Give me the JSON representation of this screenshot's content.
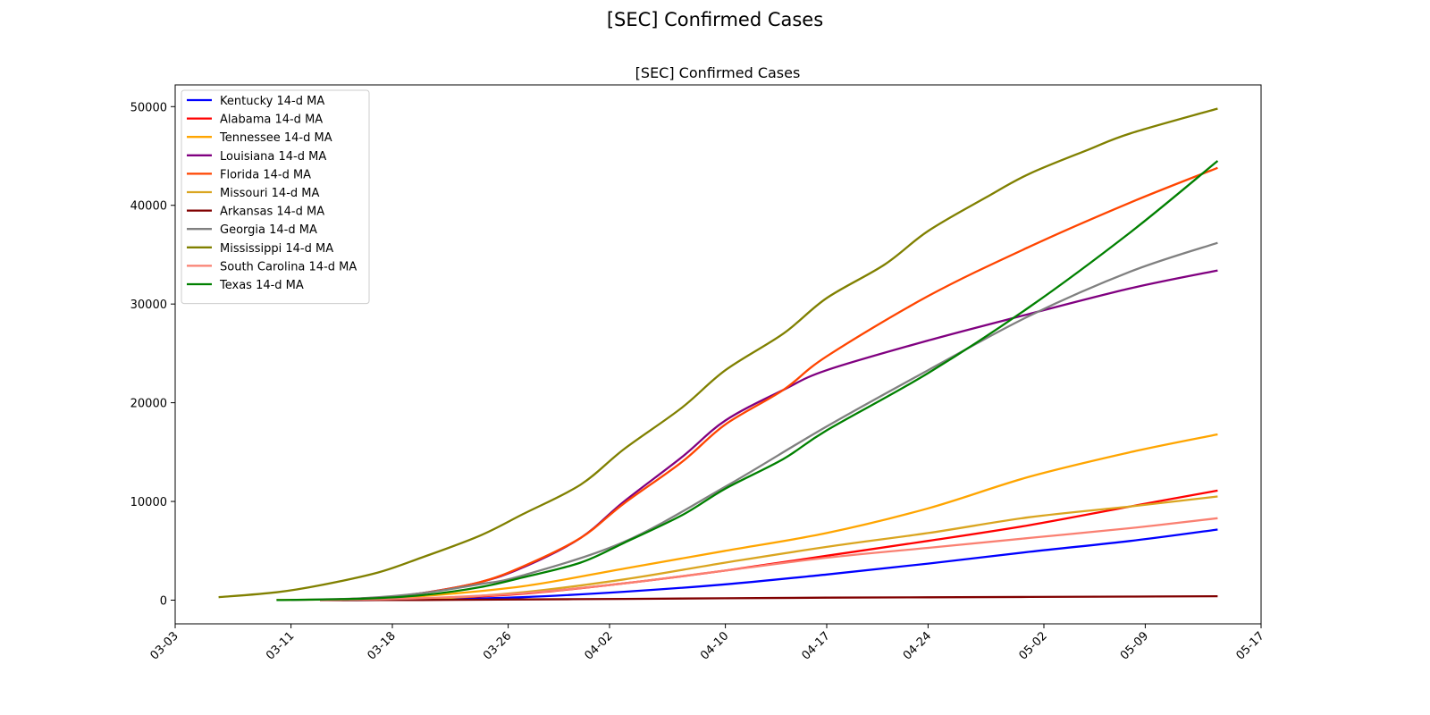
{
  "suptitle": "[SEC] Confirmed Cases",
  "chart_data": {
    "type": "line",
    "title": "[SEC] Confirmed Cases",
    "xlabel": "",
    "ylabel": "",
    "x_is_date": true,
    "xlim": [
      "2020-03-03",
      "2020-05-17"
    ],
    "ylim": [
      -2400,
      52200
    ],
    "x_ticks": [
      {
        "date": "2020-03-03",
        "label": "03-03"
      },
      {
        "date": "2020-03-11",
        "label": "03-11"
      },
      {
        "date": "2020-03-18",
        "label": "03-18"
      },
      {
        "date": "2020-03-26",
        "label": "03-26"
      },
      {
        "date": "2020-04-02",
        "label": "04-02"
      },
      {
        "date": "2020-04-10",
        "label": "04-10"
      },
      {
        "date": "2020-04-17",
        "label": "04-17"
      },
      {
        "date": "2020-04-24",
        "label": "04-24"
      },
      {
        "date": "2020-05-02",
        "label": "05-02"
      },
      {
        "date": "2020-05-09",
        "label": "05-09"
      },
      {
        "date": "2020-05-17",
        "label": "05-17"
      }
    ],
    "y_ticks": [
      0,
      10000,
      20000,
      30000,
      40000,
      50000
    ],
    "grid": false,
    "legend_position": "upper-left",
    "series": [
      {
        "name": "Kentucky 14-d MA",
        "color": "#0000ff",
        "points": [
          [
            "2020-03-13",
            0
          ],
          [
            "2020-03-20",
            60
          ],
          [
            "2020-03-27",
            300
          ],
          [
            "2020-04-03",
            850
          ],
          [
            "2020-04-10",
            1600
          ],
          [
            "2020-04-17",
            2600
          ],
          [
            "2020-04-24",
            3700
          ],
          [
            "2020-05-01",
            4900
          ],
          [
            "2020-05-08",
            6000
          ],
          [
            "2020-05-14",
            7150
          ]
        ]
      },
      {
        "name": "Alabama 14-d MA",
        "color": "#ff0000",
        "points": [
          [
            "2020-03-13",
            10
          ],
          [
            "2020-03-20",
            150
          ],
          [
            "2020-03-27",
            650
          ],
          [
            "2020-04-03",
            1700
          ],
          [
            "2020-04-10",
            3000
          ],
          [
            "2020-04-17",
            4500
          ],
          [
            "2020-04-24",
            6000
          ],
          [
            "2020-05-01",
            7600
          ],
          [
            "2020-05-08",
            9500
          ],
          [
            "2020-05-14",
            11100
          ]
        ]
      },
      {
        "name": "Tennessee 14-d MA",
        "color": "#ffa500",
        "points": [
          [
            "2020-03-10",
            20
          ],
          [
            "2020-03-16",
            120
          ],
          [
            "2020-03-20",
            400
          ],
          [
            "2020-03-27",
            1400
          ],
          [
            "2020-04-03",
            3200
          ],
          [
            "2020-04-10",
            5000
          ],
          [
            "2020-04-17",
            6800
          ],
          [
            "2020-04-24",
            9300
          ],
          [
            "2020-05-01",
            12500
          ],
          [
            "2020-05-08",
            15000
          ],
          [
            "2020-05-14",
            16800
          ]
        ]
      },
      {
        "name": "Louisiana 14-d MA",
        "color": "#800080",
        "points": [
          [
            "2020-03-13",
            20
          ],
          [
            "2020-03-17",
            250
          ],
          [
            "2020-03-20",
            700
          ],
          [
            "2020-03-24",
            1800
          ],
          [
            "2020-03-27",
            3300
          ],
          [
            "2020-03-31",
            6300
          ],
          [
            "2020-04-03",
            10000
          ],
          [
            "2020-04-07",
            14500
          ],
          [
            "2020-04-10",
            18200
          ],
          [
            "2020-04-14",
            21300
          ],
          [
            "2020-04-17",
            23300
          ],
          [
            "2020-04-24",
            26300
          ],
          [
            "2020-05-01",
            29000
          ],
          [
            "2020-05-08",
            31600
          ],
          [
            "2020-05-14",
            33400
          ]
        ]
      },
      {
        "name": "Florida 14-d MA",
        "color": "#ff4500",
        "points": [
          [
            "2020-03-13",
            20
          ],
          [
            "2020-03-17",
            250
          ],
          [
            "2020-03-20",
            700
          ],
          [
            "2020-03-24",
            1800
          ],
          [
            "2020-03-27",
            3400
          ],
          [
            "2020-03-31",
            6300
          ],
          [
            "2020-04-03",
            9800
          ],
          [
            "2020-04-07",
            14000
          ],
          [
            "2020-04-10",
            17800
          ],
          [
            "2020-04-14",
            21300
          ],
          [
            "2020-04-17",
            24700
          ],
          [
            "2020-04-24",
            30800
          ],
          [
            "2020-05-01",
            35800
          ],
          [
            "2020-05-08",
            40300
          ],
          [
            "2020-05-14",
            43800
          ]
        ]
      },
      {
        "name": "Missouri 14-d MA",
        "color": "#daa520",
        "points": [
          [
            "2020-03-13",
            0
          ],
          [
            "2020-03-20",
            100
          ],
          [
            "2020-03-27",
            800
          ],
          [
            "2020-04-03",
            2100
          ],
          [
            "2020-04-10",
            3800
          ],
          [
            "2020-04-17",
            5400
          ],
          [
            "2020-04-24",
            6800
          ],
          [
            "2020-05-01",
            8400
          ],
          [
            "2020-05-08",
            9500
          ],
          [
            "2020-05-14",
            10500
          ]
        ]
      },
      {
        "name": "Arkansas 14-d MA",
        "color": "#800000",
        "points": [
          [
            "2020-03-13",
            0
          ],
          [
            "2020-03-20",
            20
          ],
          [
            "2020-03-27",
            70
          ],
          [
            "2020-04-03",
            130
          ],
          [
            "2020-04-10",
            190
          ],
          [
            "2020-04-17",
            250
          ],
          [
            "2020-04-24",
            290
          ],
          [
            "2020-05-01",
            330
          ],
          [
            "2020-05-08",
            360
          ],
          [
            "2020-05-14",
            400
          ]
        ]
      },
      {
        "name": "Georgia 14-d MA",
        "color": "#808080",
        "points": [
          [
            "2020-03-11",
            10
          ],
          [
            "2020-03-16",
            200
          ],
          [
            "2020-03-20",
            700
          ],
          [
            "2020-03-24",
            1600
          ],
          [
            "2020-03-27",
            2500
          ],
          [
            "2020-04-03",
            5900
          ],
          [
            "2020-04-10",
            11500
          ],
          [
            "2020-04-17",
            17600
          ],
          [
            "2020-04-24",
            23300
          ],
          [
            "2020-05-01",
            28800
          ],
          [
            "2020-05-08",
            33300
          ],
          [
            "2020-05-14",
            36200
          ]
        ]
      },
      {
        "name": "Mississippi 14-d MA",
        "color": "#808000",
        "points": [
          [
            "2020-03-06",
            300
          ],
          [
            "2020-03-10",
            800
          ],
          [
            "2020-03-13",
            1500
          ],
          [
            "2020-03-17",
            2800
          ],
          [
            "2020-03-20",
            4300
          ],
          [
            "2020-03-24",
            6500
          ],
          [
            "2020-03-27",
            8700
          ],
          [
            "2020-03-31",
            11700
          ],
          [
            "2020-04-03",
            15300
          ],
          [
            "2020-04-07",
            19500
          ],
          [
            "2020-04-10",
            23300
          ],
          [
            "2020-04-14",
            27000
          ],
          [
            "2020-04-17",
            30600
          ],
          [
            "2020-04-21",
            34000
          ],
          [
            "2020-04-24",
            37400
          ],
          [
            "2020-04-28",
            40800
          ],
          [
            "2020-05-01",
            43200
          ],
          [
            "2020-05-05",
            45600
          ],
          [
            "2020-05-08",
            47300
          ],
          [
            "2020-05-14",
            49800
          ]
        ]
      },
      {
        "name": "South Carolina 14-d MA",
        "color": "#fa8072",
        "points": [
          [
            "2020-03-13",
            10
          ],
          [
            "2020-03-20",
            200
          ],
          [
            "2020-03-27",
            700
          ],
          [
            "2020-04-03",
            1700
          ],
          [
            "2020-04-10",
            3000
          ],
          [
            "2020-04-17",
            4300
          ],
          [
            "2020-04-24",
            5300
          ],
          [
            "2020-05-01",
            6300
          ],
          [
            "2020-05-08",
            7300
          ],
          [
            "2020-05-14",
            8300
          ]
        ]
      },
      {
        "name": "Texas 14-d MA",
        "color": "#008000",
        "points": [
          [
            "2020-03-10",
            10
          ],
          [
            "2020-03-16",
            150
          ],
          [
            "2020-03-20",
            500
          ],
          [
            "2020-03-24",
            1300
          ],
          [
            "2020-03-27",
            2300
          ],
          [
            "2020-03-31",
            3800
          ],
          [
            "2020-04-03",
            5800
          ],
          [
            "2020-04-07",
            8600
          ],
          [
            "2020-04-10",
            11300
          ],
          [
            "2020-04-14",
            14300
          ],
          [
            "2020-04-17",
            17200
          ],
          [
            "2020-04-24",
            23000
          ],
          [
            "2020-05-01",
            29700
          ],
          [
            "2020-05-08",
            37300
          ],
          [
            "2020-05-14",
            44500
          ]
        ]
      }
    ]
  }
}
